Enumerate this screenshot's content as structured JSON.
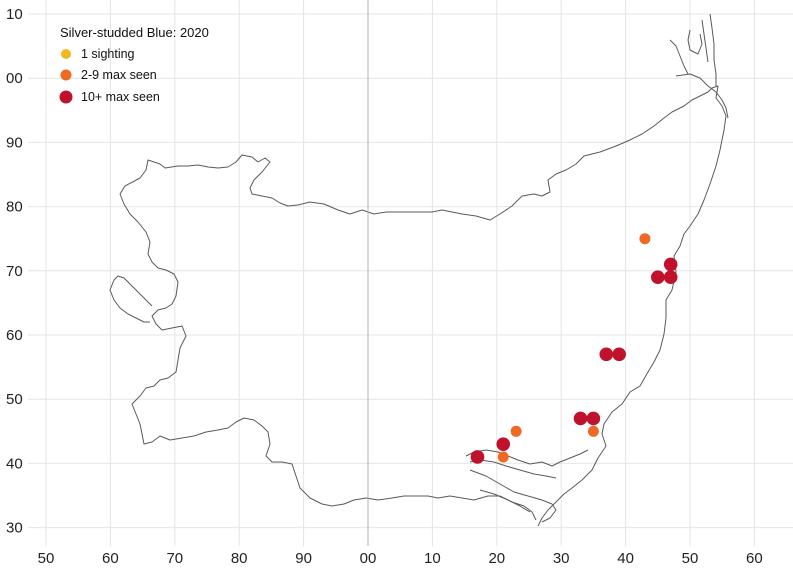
{
  "legend": {
    "title": "Silver-studded Blue:  2020",
    "items": [
      {
        "label": "1 sighting",
        "color": "#f2b81f",
        "size": "small"
      },
      {
        "label": "2-9 max seen",
        "color": "#ee6a24",
        "size": "medium"
      },
      {
        "label": "10+ max seen",
        "color": "#c0122c",
        "size": "large"
      }
    ]
  },
  "x_ticks": [
    "50",
    "60",
    "70",
    "80",
    "90",
    "00",
    "10",
    "20",
    "30",
    "40",
    "50",
    "60"
  ],
  "y_ticks": [
    "10",
    "00",
    "90",
    "80",
    "70",
    "60",
    "50",
    "40",
    "30"
  ],
  "sightings": [
    {
      "x": 43,
      "y": 75,
      "category": 1
    },
    {
      "x": 47,
      "y": 71,
      "category": 2
    },
    {
      "x": 45,
      "y": 69,
      "category": 2
    },
    {
      "x": 47,
      "y": 69,
      "category": 2
    },
    {
      "x": 37,
      "y": 57,
      "category": 2
    },
    {
      "x": 39,
      "y": 57,
      "category": 2
    },
    {
      "x": 33,
      "y": 47,
      "category": 2
    },
    {
      "x": 35,
      "y": 47,
      "category": 2
    },
    {
      "x": 35,
      "y": 45,
      "category": 1
    },
    {
      "x": 23,
      "y": 45,
      "category": 1
    },
    {
      "x": 21,
      "y": 43,
      "category": 2
    },
    {
      "x": 21,
      "y": 41,
      "category": 1
    },
    {
      "x": 17,
      "y": 41,
      "category": 2
    }
  ]
}
